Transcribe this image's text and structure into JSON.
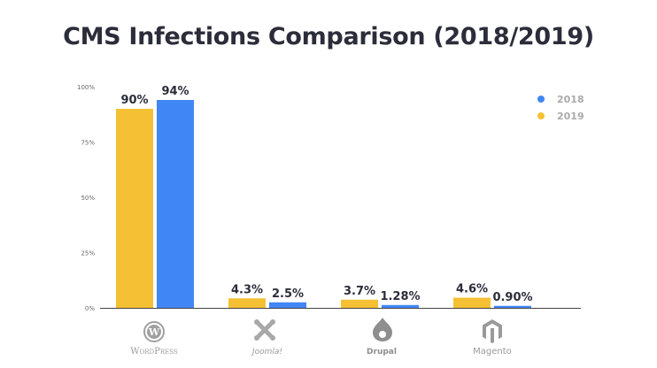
{
  "chart_data": {
    "type": "bar",
    "title": "CMS Infections Comparison (2018/2019)",
    "categories": [
      "WordPress",
      "Joomla!",
      "Drupal",
      "Magento"
    ],
    "y_ticks": [
      "0%",
      "25%",
      "50%",
      "75%",
      "100%"
    ],
    "ylim": [
      0,
      100
    ],
    "series": [
      {
        "name": "2019",
        "color": "#f5c033",
        "values": [
          90,
          4.3,
          3.7,
          4.6
        ],
        "labels": [
          "90%",
          "4.3%",
          "3.7%",
          "4.6%"
        ]
      },
      {
        "name": "2018",
        "color": "#4186f5",
        "values": [
          94,
          2.5,
          1.28,
          0.9
        ],
        "labels": [
          "94%",
          "2.5%",
          "1.28%",
          "0.90%"
        ]
      }
    ],
    "legend": [
      {
        "name": "2018",
        "color": "#4186f5"
      },
      {
        "name": "2019",
        "color": "#f5c033"
      }
    ],
    "legend_position": "top-right",
    "logos": [
      {
        "icon": "wordpress-logo-icon",
        "text": "WordPress"
      },
      {
        "icon": "joomla-logo-icon",
        "text": "Joomla!"
      },
      {
        "icon": "drupal-logo-icon",
        "text": "Drupal"
      },
      {
        "icon": "magento-logo-icon",
        "text": "Magento"
      }
    ]
  }
}
